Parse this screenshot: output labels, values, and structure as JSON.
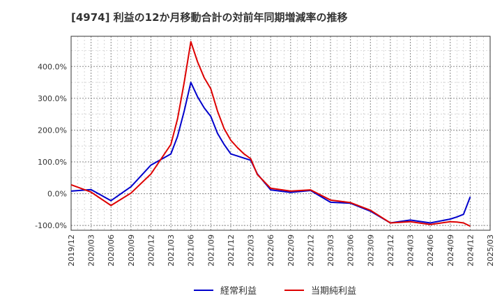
{
  "chart_data": {
    "type": "line",
    "title": "[4974]  利益の12か月移動合計の対前年同期増減率の推移",
    "xlabel": "",
    "ylabel": "",
    "ylim": [
      -115,
      495
    ],
    "y_ticks": [
      400,
      300,
      200,
      100,
      0,
      -100
    ],
    "y_tick_labels": [
      "400.0%",
      "300.0%",
      "200.0%",
      "100.0%",
      "0.0%",
      "-100.0%"
    ],
    "x_range": [
      "2019-12",
      "2025-03"
    ],
    "x_tick_labels": [
      "2019/12",
      "2020/03",
      "2020/06",
      "2020/09",
      "2020/12",
      "2021/03",
      "2021/06",
      "2021/09",
      "2021/12",
      "2022/03",
      "2022/06",
      "2022/09",
      "2022/12",
      "2023/03",
      "2023/06",
      "2023/09",
      "2023/12",
      "2024/03",
      "2024/06",
      "2024/09",
      "2024/12",
      "2025/03"
    ],
    "grid": true,
    "legend_position": "bottom",
    "series": [
      {
        "name": "経常利益",
        "color": "#0000cc",
        "x": [
          "2019-12",
          "2020-03",
          "2020-06",
          "2020-09",
          "2020-12",
          "2021-03",
          "2021-04",
          "2021-05",
          "2021-06",
          "2021-07",
          "2021-08",
          "2021-09",
          "2021-10",
          "2021-11",
          "2021-12",
          "2022-03",
          "2022-04",
          "2022-06",
          "2022-09",
          "2022-12",
          "2023-03",
          "2023-06",
          "2023-09",
          "2023-12",
          "2024-03",
          "2024-06",
          "2024-09",
          "2024-10",
          "2024-11",
          "2024-12"
        ],
        "values": [
          8,
          13,
          -22,
          22,
          90,
          125,
          180,
          260,
          350,
          305,
          270,
          243,
          190,
          155,
          125,
          105,
          62,
          12,
          4,
          10,
          -27,
          -30,
          -55,
          -92,
          -83,
          -92,
          -80,
          -73,
          -65,
          -10
        ]
      },
      {
        "name": "当期純利益",
        "color": "#dd0000",
        "x": [
          "2019-12",
          "2020-03",
          "2020-06",
          "2020-09",
          "2020-12",
          "2021-03",
          "2021-04",
          "2021-05",
          "2021-06",
          "2021-07",
          "2021-08",
          "2021-09",
          "2021-10",
          "2021-11",
          "2021-12",
          "2022-01",
          "2022-02",
          "2022-03",
          "2022-04",
          "2022-06",
          "2022-09",
          "2022-12",
          "2023-03",
          "2023-06",
          "2023-09",
          "2023-12",
          "2024-03",
          "2024-06",
          "2024-09",
          "2024-10",
          "2024-11",
          "2024-12"
        ],
        "values": [
          28,
          5,
          -37,
          2,
          62,
          155,
          235,
          350,
          478,
          415,
          365,
          330,
          260,
          205,
          168,
          145,
          125,
          110,
          60,
          17,
          8,
          12,
          -20,
          -28,
          -52,
          -92,
          -88,
          -97,
          -88,
          -89,
          -92,
          -102
        ]
      }
    ]
  }
}
